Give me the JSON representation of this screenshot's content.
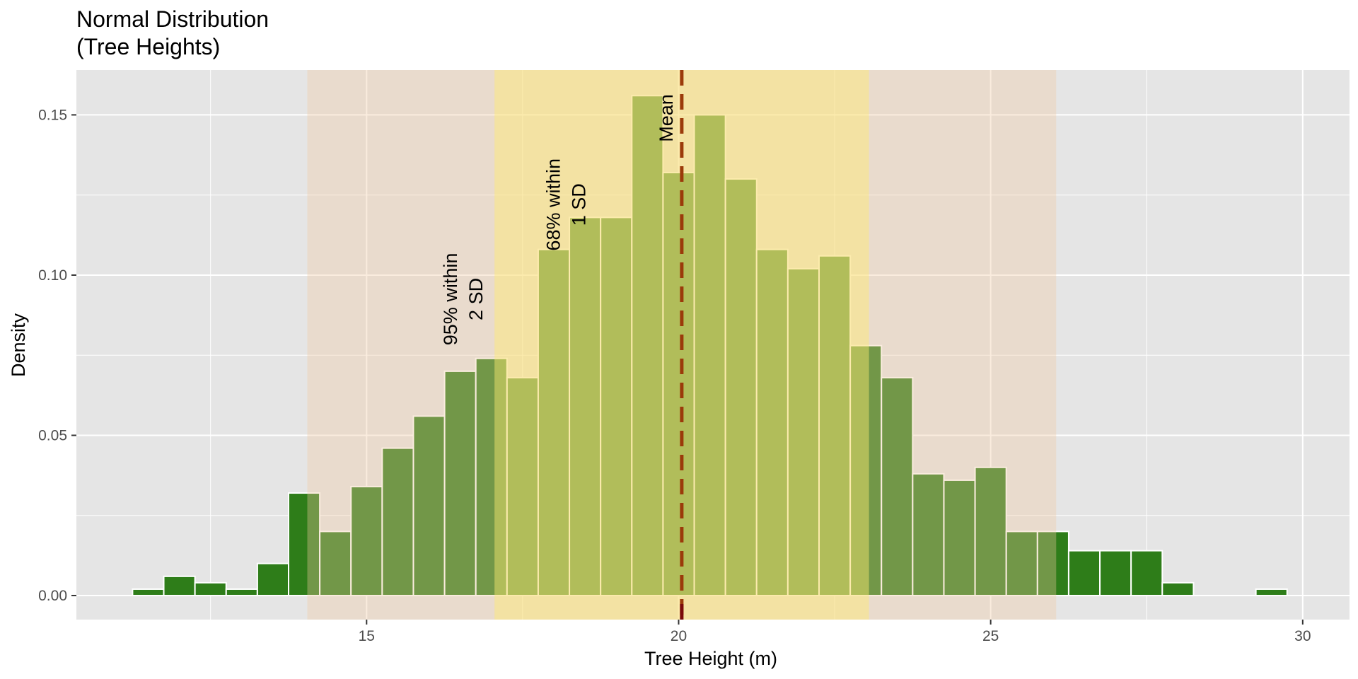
{
  "chart_data": {
    "type": "bar",
    "title_lines": [
      "Normal Distribution",
      "(Tree Heights)"
    ],
    "xlabel": "Tree Height (m)",
    "ylabel": "Density",
    "xlim": [
      10.35,
      30.75
    ],
    "ylim": [
      -0.0075,
      0.164
    ],
    "x_ticks": [
      15,
      20,
      25,
      30
    ],
    "x_tick_labels": [
      "15",
      "20",
      "25",
      "30"
    ],
    "y_ticks": [
      0.0,
      0.05,
      0.1,
      0.15
    ],
    "y_tick_labels": [
      "0.00",
      "0.05",
      "0.10",
      "0.15"
    ],
    "grid": true,
    "bin_width": 0.5,
    "bars": [
      {
        "x": 11.5,
        "density": 0.002
      },
      {
        "x": 12.0,
        "density": 0.006
      },
      {
        "x": 12.5,
        "density": 0.004
      },
      {
        "x": 13.0,
        "density": 0.002
      },
      {
        "x": 13.5,
        "density": 0.01
      },
      {
        "x": 14.0,
        "density": 0.032
      },
      {
        "x": 14.5,
        "density": 0.02
      },
      {
        "x": 15.0,
        "density": 0.034
      },
      {
        "x": 15.5,
        "density": 0.046
      },
      {
        "x": 16.0,
        "density": 0.056
      },
      {
        "x": 16.5,
        "density": 0.07
      },
      {
        "x": 17.0,
        "density": 0.074
      },
      {
        "x": 17.5,
        "density": 0.068
      },
      {
        "x": 18.0,
        "density": 0.108
      },
      {
        "x": 18.5,
        "density": 0.118
      },
      {
        "x": 19.0,
        "density": 0.118
      },
      {
        "x": 19.5,
        "density": 0.156
      },
      {
        "x": 20.0,
        "density": 0.132
      },
      {
        "x": 20.5,
        "density": 0.15
      },
      {
        "x": 21.0,
        "density": 0.13
      },
      {
        "x": 21.5,
        "density": 0.108
      },
      {
        "x": 22.0,
        "density": 0.102
      },
      {
        "x": 22.5,
        "density": 0.106
      },
      {
        "x": 23.0,
        "density": 0.078
      },
      {
        "x": 23.5,
        "density": 0.068
      },
      {
        "x": 24.0,
        "density": 0.038
      },
      {
        "x": 24.5,
        "density": 0.036
      },
      {
        "x": 25.0,
        "density": 0.04
      },
      {
        "x": 25.5,
        "density": 0.02
      },
      {
        "x": 26.0,
        "density": 0.02
      },
      {
        "x": 26.5,
        "density": 0.014
      },
      {
        "x": 27.0,
        "density": 0.014
      },
      {
        "x": 27.5,
        "density": 0.014
      },
      {
        "x": 28.0,
        "density": 0.004
      },
      {
        "x": 28.5,
        "density": 0.0
      },
      {
        "x": 29.0,
        "density": 0.0
      },
      {
        "x": 29.5,
        "density": 0.002
      }
    ],
    "bands": [
      {
        "name": "2 SD",
        "from": 14.05,
        "to": 26.05,
        "color": "#f2c9a0",
        "opacity": 0.35
      },
      {
        "name": "1 SD",
        "from": 17.05,
        "to": 23.05,
        "color": "#ffeb70",
        "opacity": 0.45
      }
    ],
    "mean": 20.05,
    "annotations": [
      {
        "lines": [
          "95% within",
          "2 SD"
        ],
        "x": 16.55,
        "y": 0.0925
      },
      {
        "lines": [
          "68% within",
          "1 SD"
        ],
        "x": 18.2,
        "y": 0.122
      },
      {
        "lines": [
          "Mean"
        ],
        "x": 19.8,
        "y": 0.149
      }
    ],
    "colors": {
      "panel": "#e5e5e5",
      "grid": "#ffffff",
      "bar_fill": "#2e7d19",
      "bar_outline": "#ffffff",
      "mean_line": "#9b3a0a",
      "mean_line_end": "#7a0a0a"
    }
  }
}
